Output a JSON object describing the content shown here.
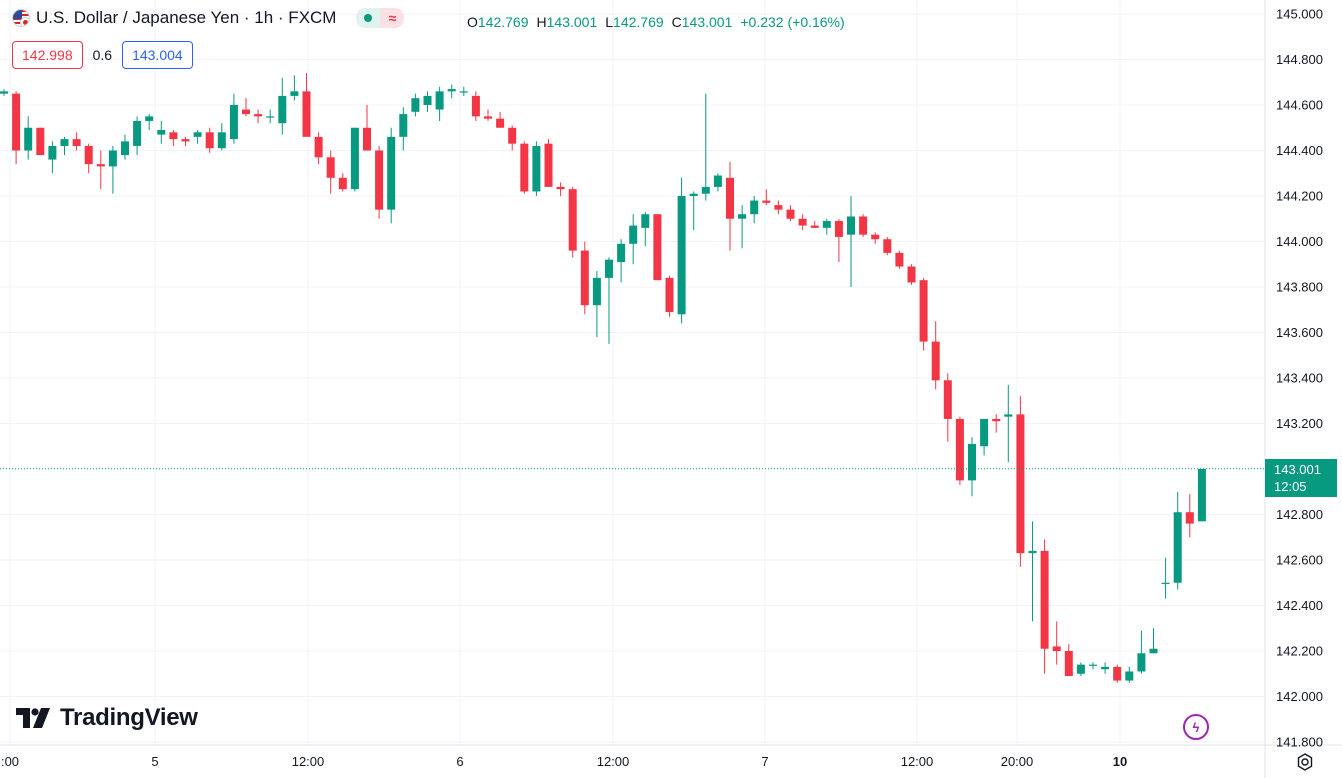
{
  "header": {
    "symbol": "U.S. Dollar / Japanese Yen · 1h · FXCM",
    "flag_icon": "usd-jpy-flag-icon",
    "wave_glyph": "≈"
  },
  "ohlc": {
    "o_label": "O",
    "o_value": "142.769",
    "h_label": "H",
    "h_value": "143.001",
    "l_label": "L",
    "l_value": "142.769",
    "c_label": "C",
    "c_value": "143.001",
    "change": "+0.232 (+0.16%)"
  },
  "quotes": {
    "sell": "142.998",
    "spread": "0.6",
    "buy": "143.004"
  },
  "last_price": {
    "value": "143.001",
    "countdown": "12:05"
  },
  "logo_text": "TradingView",
  "flash_glyph": "ϟ",
  "colors": {
    "up": "#089981",
    "down": "#f23645",
    "grid": "#f0f3fa",
    "tag": "#089981"
  },
  "chart_data": {
    "type": "candlestick",
    "y_axis_ticks": [
      "145.000",
      "144.800",
      "144.600",
      "144.400",
      "144.200",
      "144.000",
      "143.800",
      "143.600",
      "143.400",
      "143.200",
      "142.800",
      "142.600",
      "142.400",
      "142.200",
      "142.000",
      "141.800"
    ],
    "x_axis_ticks": [
      {
        "label": ":00",
        "bold": false
      },
      {
        "label": "5",
        "bold": false
      },
      {
        "label": "12:00",
        "bold": false
      },
      {
        "label": "6",
        "bold": false
      },
      {
        "label": "12:00",
        "bold": false
      },
      {
        "label": "7",
        "bold": false
      },
      {
        "label": "12:00",
        "bold": false
      },
      {
        "label": "20:00",
        "bold": false
      },
      {
        "label": "10",
        "bold": true
      }
    ],
    "ylim": [
      141.8,
      145.0
    ],
    "last_price": 143.001,
    "candles": [
      [
        144.65,
        144.67,
        144.64,
        144.66
      ],
      [
        144.65,
        144.66,
        144.34,
        144.4
      ],
      [
        144.4,
        144.55,
        144.36,
        144.5
      ],
      [
        144.5,
        144.5,
        144.38,
        144.38
      ],
      [
        144.36,
        144.44,
        144.3,
        144.42
      ],
      [
        144.42,
        144.46,
        144.38,
        144.45
      ],
      [
        144.45,
        144.48,
        144.4,
        144.42
      ],
      [
        144.42,
        144.43,
        144.3,
        144.34
      ],
      [
        144.34,
        144.4,
        144.23,
        144.33
      ],
      [
        144.33,
        144.42,
        144.21,
        144.4
      ],
      [
        144.38,
        144.47,
        144.36,
        144.44
      ],
      [
        144.42,
        144.55,
        144.38,
        144.53
      ],
      [
        144.53,
        144.56,
        144.49,
        144.55
      ],
      [
        144.47,
        144.53,
        144.43,
        144.49
      ],
      [
        144.48,
        144.49,
        144.42,
        144.45
      ],
      [
        144.45,
        144.46,
        144.42,
        144.44
      ],
      [
        144.46,
        144.49,
        144.43,
        144.48
      ],
      [
        144.48,
        144.5,
        144.39,
        144.41
      ],
      [
        144.41,
        144.52,
        144.4,
        144.48
      ],
      [
        144.45,
        144.65,
        144.43,
        144.6
      ],
      [
        144.58,
        144.63,
        144.55,
        144.56
      ],
      [
        144.56,
        144.58,
        144.52,
        144.55
      ],
      [
        144.55,
        144.58,
        144.52,
        144.55
      ],
      [
        144.52,
        144.72,
        144.47,
        144.64
      ],
      [
        144.64,
        144.73,
        144.62,
        144.66
      ],
      [
        144.66,
        144.74,
        144.47,
        144.46
      ],
      [
        144.46,
        144.48,
        144.34,
        144.37
      ],
      [
        144.37,
        144.4,
        144.21,
        144.28
      ],
      [
        144.28,
        144.3,
        144.22,
        144.23
      ],
      [
        144.23,
        144.5,
        144.22,
        144.5
      ],
      [
        144.5,
        144.6,
        144.42,
        144.4
      ],
      [
        144.4,
        144.42,
        144.1,
        144.14
      ],
      [
        144.14,
        144.5,
        144.08,
        144.46
      ],
      [
        144.46,
        144.59,
        144.4,
        144.56
      ],
      [
        144.57,
        144.65,
        144.55,
        144.63
      ],
      [
        144.6,
        144.66,
        144.57,
        144.64
      ],
      [
        144.58,
        144.68,
        144.53,
        144.66
      ],
      [
        144.66,
        144.69,
        144.63,
        144.67
      ],
      [
        144.66,
        144.68,
        144.64,
        144.66
      ],
      [
        144.64,
        144.66,
        144.53,
        144.55
      ],
      [
        144.55,
        144.58,
        144.53,
        144.54
      ],
      [
        144.54,
        144.57,
        144.5,
        144.5
      ],
      [
        144.5,
        144.51,
        144.4,
        144.43
      ],
      [
        144.43,
        144.44,
        144.21,
        144.22
      ],
      [
        144.22,
        144.44,
        144.2,
        144.42
      ],
      [
        144.43,
        144.45,
        144.24,
        144.24
      ],
      [
        144.24,
        144.26,
        144.2,
        144.23
      ],
      [
        144.23,
        144.24,
        143.93,
        143.96
      ],
      [
        143.96,
        144.0,
        143.68,
        143.72
      ],
      [
        143.72,
        143.87,
        143.58,
        143.84
      ],
      [
        143.84,
        143.93,
        143.55,
        143.92
      ],
      [
        143.91,
        144.01,
        143.82,
        143.99
      ],
      [
        143.99,
        144.12,
        143.9,
        144.07
      ],
      [
        144.06,
        144.13,
        143.98,
        144.12
      ],
      [
        144.12,
        144.12,
        143.83,
        143.83
      ],
      [
        143.84,
        143.85,
        143.67,
        143.69
      ],
      [
        143.68,
        144.28,
        143.64,
        144.2
      ],
      [
        144.2,
        144.22,
        144.05,
        144.21
      ],
      [
        144.21,
        144.65,
        144.18,
        144.24
      ],
      [
        144.24,
        144.3,
        144.22,
        144.29
      ],
      [
        144.28,
        144.35,
        143.96,
        144.1
      ],
      [
        144.1,
        144.16,
        143.97,
        144.12
      ],
      [
        144.12,
        144.2,
        144.08,
        144.18
      ],
      [
        144.18,
        144.23,
        144.16,
        144.17
      ],
      [
        144.16,
        144.18,
        144.12,
        144.14
      ],
      [
        144.14,
        144.16,
        144.09,
        144.1
      ],
      [
        144.1,
        144.12,
        144.05,
        144.07
      ],
      [
        144.07,
        144.09,
        144.06,
        144.06
      ],
      [
        144.06,
        144.1,
        144.03,
        144.09
      ],
      [
        144.09,
        144.1,
        143.91,
        144.02
      ],
      [
        144.03,
        144.2,
        143.8,
        144.11
      ],
      [
        144.11,
        144.12,
        144.02,
        144.03
      ],
      [
        144.03,
        144.04,
        143.99,
        144.01
      ],
      [
        144.01,
        144.02,
        143.94,
        143.95
      ],
      [
        143.95,
        143.96,
        143.88,
        143.89
      ],
      [
        143.89,
        143.9,
        143.81,
        143.82
      ],
      [
        143.83,
        143.84,
        143.52,
        143.56
      ],
      [
        143.56,
        143.65,
        143.35,
        143.39
      ],
      [
        143.39,
        143.42,
        143.12,
        143.22
      ],
      [
        143.22,
        143.23,
        142.93,
        142.95
      ],
      [
        142.95,
        143.14,
        142.88,
        143.11
      ],
      [
        143.1,
        143.22,
        143.06,
        143.22
      ],
      [
        143.22,
        143.24,
        143.16,
        143.21
      ],
      [
        143.23,
        143.37,
        143.03,
        143.24
      ],
      [
        143.24,
        143.32,
        142.57,
        142.63
      ],
      [
        142.63,
        142.77,
        142.33,
        142.64
      ],
      [
        142.64,
        142.69,
        142.1,
        142.21
      ],
      [
        142.22,
        142.33,
        142.14,
        142.2
      ],
      [
        142.2,
        142.23,
        142.09,
        142.09
      ],
      [
        142.1,
        142.15,
        142.09,
        142.14
      ],
      [
        142.14,
        142.15,
        142.12,
        142.14
      ],
      [
        142.12,
        142.15,
        142.1,
        142.13
      ],
      [
        142.13,
        142.14,
        142.06,
        142.07
      ],
      [
        142.07,
        142.13,
        142.06,
        142.11
      ],
      [
        142.11,
        142.29,
        142.1,
        142.19
      ],
      [
        142.19,
        142.3,
        142.19,
        142.21
      ],
      [
        142.5,
        142.61,
        142.43,
        142.5
      ],
      [
        142.5,
        142.9,
        142.47,
        142.81
      ],
      [
        142.81,
        142.89,
        142.7,
        142.76
      ],
      [
        142.77,
        143.0,
        142.77,
        143.0
      ]
    ]
  }
}
